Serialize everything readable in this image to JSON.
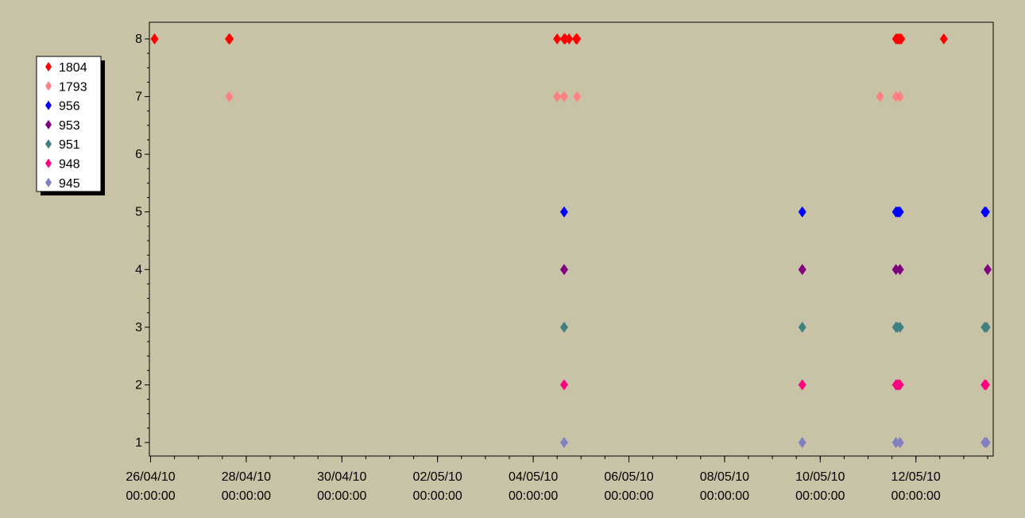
{
  "chart_data": {
    "type": "scatter",
    "title": "",
    "xlabel": "",
    "ylabel": "",
    "x_range": [
      "2010-04-26 00:00",
      "2010-05-13 12:00"
    ],
    "ylim": [
      1,
      8
    ],
    "y_ticks": [
      1,
      2,
      3,
      4,
      5,
      6,
      7,
      8
    ],
    "x_ticks": [
      {
        "x": "2010-04-26 00:00",
        "line1": "26/04/10",
        "line2": "00:00:00"
      },
      {
        "x": "2010-04-28 00:00",
        "line1": "28/04/10",
        "line2": "00:00:00"
      },
      {
        "x": "2010-04-30 00:00",
        "line1": "30/04/10",
        "line2": "00:00:00"
      },
      {
        "x": "2010-05-02 00:00",
        "line1": "02/05/10",
        "line2": "00:00:00"
      },
      {
        "x": "2010-05-04 00:00",
        "line1": "04/05/10",
        "line2": "00:00:00"
      },
      {
        "x": "2010-05-06 00:00",
        "line1": "06/05/10",
        "line2": "00:00:00"
      },
      {
        "x": "2010-05-08 00:00",
        "line1": "08/05/10",
        "line2": "00:00:00"
      },
      {
        "x": "2010-05-10 00:00",
        "line1": "10/05/10",
        "line2": "00:00:00"
      },
      {
        "x": "2010-05-12 00:00",
        "line1": "12/05/10",
        "line2": "00:00:00"
      }
    ],
    "grid": false,
    "legend_position": "left",
    "background_color": "#c8c3a6",
    "plot_background_color": "#c8c3a6",
    "marker": "diamond",
    "series": [
      {
        "name": "1804",
        "color": "#ff0000",
        "y": 8,
        "x": [
          "2010-04-26 02:00",
          "2010-04-27 15:20",
          "2010-04-27 15:45",
          "2010-05-04 12:00",
          "2010-05-04 15:30",
          "2010-05-04 16:00",
          "2010-05-04 18:00",
          "2010-05-04 21:30",
          "2010-05-04 22:00",
          "2010-05-11 14:00",
          "2010-05-11 14:40",
          "2010-05-11 15:20",
          "2010-05-11 16:00",
          "2010-05-11 16:40",
          "2010-05-12 14:00"
        ]
      },
      {
        "name": "1793",
        "color": "#ff8080",
        "y": 7,
        "x": [
          "2010-04-27 15:30",
          "2010-05-04 12:00",
          "2010-05-04 15:30",
          "2010-05-04 22:00",
          "2010-05-11 06:00",
          "2010-05-11 14:00",
          "2010-05-11 16:00"
        ]
      },
      {
        "name": "956",
        "color": "#0000ff",
        "y": 5,
        "x": [
          "2010-05-04 15:30",
          "2010-05-09 15:00",
          "2010-05-11 14:00",
          "2010-05-11 14:40",
          "2010-05-11 15:20",
          "2010-05-11 16:00",
          "2010-05-13 10:30",
          "2010-05-13 11:10"
        ]
      },
      {
        "name": "953",
        "color": "#800080",
        "y": 4,
        "x": [
          "2010-05-04 15:30",
          "2010-05-09 15:00",
          "2010-05-11 14:00",
          "2010-05-11 16:00",
          "2010-05-13 12:00"
        ]
      },
      {
        "name": "951",
        "color": "#408080",
        "y": 3,
        "x": [
          "2010-05-04 15:30",
          "2010-05-09 15:00",
          "2010-05-11 14:00",
          "2010-05-11 14:40",
          "2010-05-11 16:00",
          "2010-05-13 10:30",
          "2010-05-13 11:30"
        ]
      },
      {
        "name": "948",
        "color": "#ff0080",
        "y": 2,
        "x": [
          "2010-05-04 15:30",
          "2010-05-09 15:00",
          "2010-05-11 14:00",
          "2010-05-11 14:40",
          "2010-05-11 15:20",
          "2010-05-11 16:00",
          "2010-05-13 10:30",
          "2010-05-13 11:10"
        ]
      },
      {
        "name": "945",
        "color": "#8080c0",
        "y": 1,
        "x": [
          "2010-05-04 15:30",
          "2010-05-09 15:00",
          "2010-05-11 14:00",
          "2010-05-11 16:00",
          "2010-05-13 10:30",
          "2010-05-13 11:30"
        ]
      }
    ]
  }
}
